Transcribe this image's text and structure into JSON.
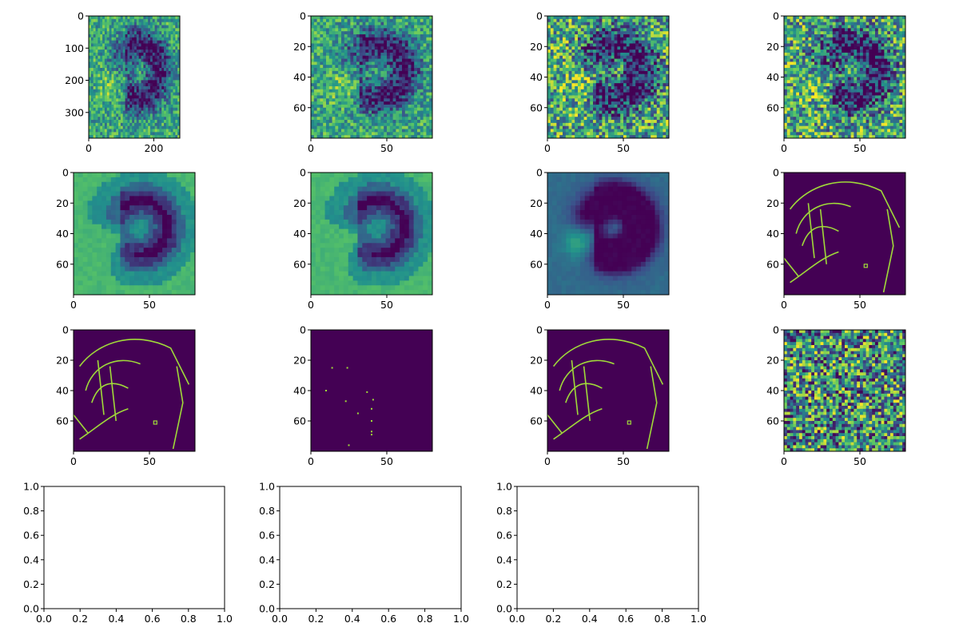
{
  "colors": {
    "viridis_low": "#440154",
    "viridis_mid": "#21918c",
    "viridis_high": "#fde725",
    "edge": "#a0da39",
    "axis": "#000000",
    "background": "#ffffff"
  },
  "chart_data": [
    {
      "type": "heatmap",
      "panel": "fingerprint-raw",
      "xlim": [
        0,
        280
      ],
      "ylim": [
        380,
        0
      ],
      "xticks": [
        "0",
        "200"
      ],
      "yticks": [
        "0",
        "100",
        "200",
        "300"
      ],
      "description_of_content": "raw grayscale image, viridis colormap, swirl pattern"
    },
    {
      "type": "heatmap",
      "panel": "fingerprint-downsampled",
      "xlim": [
        0,
        80
      ],
      "ylim": [
        80,
        0
      ],
      "xticks": [
        "0",
        "50"
      ],
      "yticks": [
        "0",
        "20",
        "40",
        "60"
      ]
    },
    {
      "type": "heatmap",
      "panel": "fingerprint-contrast",
      "xlim": [
        0,
        80
      ],
      "ylim": [
        80,
        0
      ],
      "xticks": [
        "0",
        "50"
      ],
      "yticks": [
        "0",
        "20",
        "40",
        "60"
      ]
    },
    {
      "type": "heatmap",
      "panel": "fingerprint-normalized",
      "xlim": [
        0,
        80
      ],
      "ylim": [
        80,
        0
      ],
      "xticks": [
        "0",
        "50"
      ],
      "yticks": [
        "0",
        "20",
        "40",
        "60"
      ]
    },
    {
      "type": "heatmap",
      "panel": "block-mean",
      "xlim": [
        0,
        80
      ],
      "ylim": [
        80,
        0
      ],
      "xticks": [
        "0",
        "50"
      ],
      "yticks": [
        "0",
        "20",
        "40",
        "60"
      ]
    },
    {
      "type": "heatmap",
      "panel": "block-smoothed",
      "xlim": [
        0,
        80
      ],
      "ylim": [
        80,
        0
      ],
      "xticks": [
        "0",
        "50"
      ],
      "yticks": [
        "0",
        "20",
        "40",
        "60"
      ]
    },
    {
      "type": "heatmap",
      "panel": "block-variance",
      "xlim": [
        0,
        80
      ],
      "ylim": [
        80,
        0
      ],
      "xticks": [
        "0",
        "50"
      ],
      "yticks": [
        "0",
        "20",
        "40",
        "60"
      ]
    },
    {
      "type": "heatmap",
      "panel": "edges-a",
      "xlim": [
        0,
        80
      ],
      "ylim": [
        80,
        0
      ],
      "xticks": [
        "0",
        "50"
      ],
      "yticks": [
        "0",
        "20",
        "40",
        "60"
      ]
    },
    {
      "type": "heatmap",
      "panel": "edges-b",
      "xlim": [
        0,
        80
      ],
      "ylim": [
        80,
        0
      ],
      "xticks": [
        "0",
        "50"
      ],
      "yticks": [
        "0",
        "20",
        "40",
        "60"
      ]
    },
    {
      "type": "scatter",
      "panel": "minutiae-points",
      "xlim": [
        0,
        80
      ],
      "ylim": [
        80,
        0
      ],
      "xticks": [
        "0",
        "50"
      ],
      "yticks": [
        "0",
        "20",
        "40",
        "60"
      ],
      "x": [
        14,
        24,
        10,
        23,
        37,
        41,
        31,
        40,
        40,
        40,
        40,
        25
      ],
      "y": [
        25,
        25,
        40,
        47,
        41,
        46,
        55,
        52,
        60,
        67,
        69,
        76
      ]
    },
    {
      "type": "heatmap",
      "panel": "edges-c",
      "xlim": [
        0,
        80
      ],
      "ylim": [
        80,
        0
      ],
      "xticks": [
        "0",
        "50"
      ],
      "yticks": [
        "0",
        "20",
        "40",
        "60"
      ]
    },
    {
      "type": "heatmap",
      "panel": "orientation-field",
      "xlim": [
        0,
        80
      ],
      "ylim": [
        80,
        0
      ],
      "xticks": [
        "0",
        "50"
      ],
      "yticks": [
        "0",
        "20",
        "40",
        "60"
      ]
    },
    {
      "type": "line",
      "panel": "empty-1",
      "xlim": [
        0,
        1
      ],
      "ylim": [
        0,
        1
      ],
      "xticks": [
        "0.0",
        "0.2",
        "0.4",
        "0.6",
        "0.8",
        "1.0"
      ],
      "yticks": [
        "0.0",
        "0.2",
        "0.4",
        "0.6",
        "0.8",
        "1.0"
      ],
      "series": []
    },
    {
      "type": "line",
      "panel": "empty-2",
      "xlim": [
        0,
        1
      ],
      "ylim": [
        0,
        1
      ],
      "xticks": [
        "0.0",
        "0.2",
        "0.4",
        "0.6",
        "0.8",
        "1.0"
      ],
      "yticks": [
        "0.0",
        "0.2",
        "0.4",
        "0.6",
        "0.8",
        "1.0"
      ],
      "series": []
    },
    {
      "type": "line",
      "panel": "empty-3",
      "xlim": [
        0,
        1
      ],
      "ylim": [
        0,
        1
      ],
      "xticks": [
        "0.0",
        "0.2",
        "0.4",
        "0.6",
        "0.8",
        "1.0"
      ],
      "yticks": [
        "0.0",
        "0.2",
        "0.4",
        "0.6",
        "0.8",
        "1.0"
      ],
      "series": []
    }
  ]
}
